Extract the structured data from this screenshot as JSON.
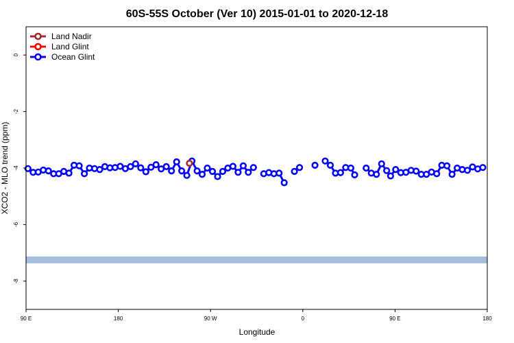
{
  "chart_data": {
    "type": "line",
    "title": "60S-55S October (Ver 10)   2015-01-01 to 2020-12-18",
    "xlabel": "Longitude",
    "ylabel": "XCO2 - MLO trend (ppm)",
    "xlim": [
      -180,
      180
    ],
    "ylim": [
      -9,
      1
    ],
    "x_ticks": [
      {
        "value": -180,
        "label": "90 E"
      },
      {
        "value": -108,
        "label": "180"
      },
      {
        "value": -36,
        "label": "90 W"
      },
      {
        "value": 36,
        "label": "0"
      },
      {
        "value": 108,
        "label": "90 E"
      },
      {
        "value": 180,
        "label": "180"
      }
    ],
    "y_ticks": [
      {
        "value": 0,
        "label": "0"
      },
      {
        "value": -2,
        "label": "-2"
      },
      {
        "value": -4,
        "label": "-4"
      },
      {
        "value": -6,
        "label": "-6"
      },
      {
        "value": -8,
        "label": "-8"
      }
    ],
    "legend": {
      "position": "top-left",
      "entries": [
        {
          "name": "Land Nadir",
          "color": "#a52a2a"
        },
        {
          "name": "Land Glint",
          "color": "#ff0000"
        },
        {
          "name": "Ocean Glint",
          "color": "#0000ff"
        }
      ]
    },
    "band": {
      "y_center": -7.25,
      "y_halfwidth": 0.12,
      "color": "#a6bddf"
    },
    "series": [
      {
        "name": "Land Nadir",
        "color": "#a52a2a",
        "segments": [
          [
            [
              -52.5,
              -3.83
            ]
          ]
        ]
      },
      {
        "name": "Ocean Glint",
        "color": "#0000ff",
        "segments": [
          [
            [
              -178.5,
              -4.02
            ],
            [
              -174.5,
              -4.15
            ],
            [
              -170.5,
              -4.14
            ],
            [
              -166.5,
              -4.07
            ],
            [
              -162.5,
              -4.1
            ],
            [
              -158.5,
              -4.2
            ],
            [
              -154.5,
              -4.2
            ],
            [
              -150.5,
              -4.12
            ],
            [
              -146.5,
              -4.18
            ],
            [
              -142.5,
              -3.9
            ],
            [
              -138.5,
              -3.92
            ],
            [
              -134.5,
              -4.2
            ],
            [
              -130.5,
              -4.0
            ],
            [
              -126.5,
              -4.02
            ],
            [
              -122.5,
              -4.05
            ],
            [
              -118.5,
              -3.95
            ],
            [
              -114.5,
              -3.99
            ],
            [
              -110.5,
              -3.98
            ],
            [
              -106.5,
              -3.94
            ],
            [
              -102.5,
              -4.02
            ],
            [
              -98.5,
              -3.95
            ],
            [
              -94.5,
              -3.85
            ],
            [
              -90.5,
              -3.99
            ],
            [
              -86.5,
              -4.13
            ],
            [
              -82.5,
              -3.97
            ],
            [
              -78.5,
              -3.88
            ],
            [
              -74.5,
              -4.03
            ],
            [
              -70.5,
              -3.95
            ],
            [
              -66.5,
              -4.1
            ],
            [
              -62.5,
              -3.78
            ],
            [
              -58.5,
              -4.1
            ],
            [
              -54.5,
              -4.26
            ],
            [
              -50.5,
              -3.75
            ],
            [
              -46.5,
              -4.1
            ],
            [
              -42.5,
              -4.22
            ],
            [
              -38.5,
              -4.0
            ],
            [
              -34.5,
              -4.12
            ],
            [
              -30.5,
              -4.3
            ],
            [
              -26.5,
              -4.12
            ],
            [
              -22.5,
              -4.0
            ],
            [
              -18.5,
              -3.94
            ],
            [
              -14.5,
              -4.15
            ],
            [
              -10.5,
              -3.92
            ],
            [
              -6.5,
              -4.15
            ],
            [
              -2.5,
              -3.98
            ]
          ],
          [
            [
              5.5,
              -4.2
            ],
            [
              9.5,
              -4.16
            ],
            [
              13.5,
              -4.2
            ],
            [
              17.5,
              -4.18
            ],
            [
              21.5,
              -4.52
            ]
          ],
          [
            [
              29.5,
              -4.12
            ],
            [
              33.5,
              -3.98
            ]
          ],
          [
            [
              45.5,
              -3.9
            ]
          ],
          [
            [
              53.5,
              -3.75
            ],
            [
              57.5,
              -3.9
            ],
            [
              61.5,
              -4.18
            ],
            [
              65.5,
              -4.16
            ],
            [
              69.5,
              -3.98
            ],
            [
              73.5,
              -4.0
            ],
            [
              76.5,
              -4.24
            ]
          ],
          [
            [
              85.5,
              -4.0
            ],
            [
              89.5,
              -4.18
            ],
            [
              93.5,
              -4.22
            ],
            [
              97.5,
              -3.85
            ],
            [
              101.5,
              -4.09
            ],
            [
              104.5,
              -4.28
            ],
            [
              108.5,
              -4.05
            ],
            [
              112.5,
              -4.16
            ],
            [
              116.5,
              -4.15
            ],
            [
              120.5,
              -4.08
            ],
            [
              124.5,
              -4.11
            ],
            [
              128.5,
              -4.22
            ],
            [
              132.5,
              -4.22
            ],
            [
              136.5,
              -4.14
            ],
            [
              140.5,
              -4.2
            ],
            [
              144.5,
              -3.9
            ],
            [
              148.5,
              -3.92
            ],
            [
              152.5,
              -4.22
            ],
            [
              156.5,
              -4.0
            ],
            [
              160.5,
              -4.05
            ],
            [
              164.5,
              -4.08
            ],
            [
              168.5,
              -3.96
            ],
            [
              172.5,
              -4.03
            ],
            [
              176.5,
              -3.98
            ]
          ]
        ]
      }
    ]
  }
}
